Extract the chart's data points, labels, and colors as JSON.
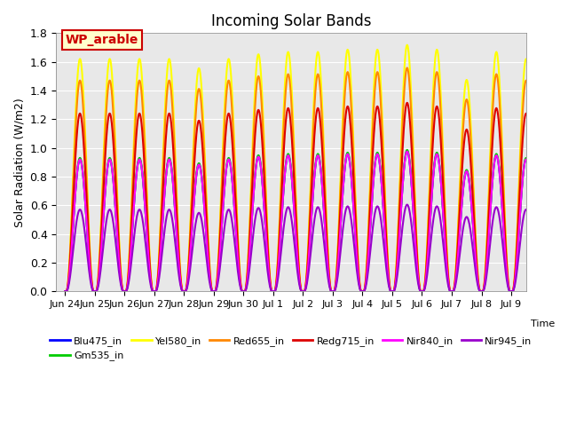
{
  "title": "Incoming Solar Bands",
  "ylabel": "Solar Radiation (W/m2)",
  "ylim": [
    0,
    1.8
  ],
  "yticks": [
    0.0,
    0.2,
    0.4,
    0.6,
    0.8,
    1.0,
    1.2,
    1.4,
    1.6,
    1.8
  ],
  "plot_bg_color": "#e8e8e8",
  "annotation_text": "WP_arable",
  "annotation_bg": "#ffffcc",
  "annotation_fg": "#cc0000",
  "series": [
    {
      "name": "Blu475_in",
      "color": "#0000ff",
      "lw": 1.5,
      "scale": 0.92
    },
    {
      "name": "Gm535_in",
      "color": "#00cc00",
      "lw": 1.5,
      "scale": 0.93
    },
    {
      "name": "Yel580_in",
      "color": "#ffff00",
      "lw": 1.5,
      "scale": 1.62
    },
    {
      "name": "Red655_in",
      "color": "#ff8800",
      "lw": 1.5,
      "scale": 1.47
    },
    {
      "name": "Redg715_in",
      "color": "#dd0000",
      "lw": 1.5,
      "scale": 1.24
    },
    {
      "name": "Nir840_in",
      "color": "#ff00ff",
      "lw": 1.5,
      "scale": 0.92
    },
    {
      "name": "Nir945_in",
      "color": "#9900cc",
      "lw": 1.5,
      "scale": 0.57
    }
  ],
  "xtick_labels": [
    "Jun 24",
    "Jun 25",
    "Jun 26",
    "Jun 27",
    "Jun 28",
    "Jun 29",
    "Jun 30",
    "Jul 1",
    "Jul 2",
    "Jul 3",
    "Jul 4",
    "Jul 5",
    "Jul 6",
    "Jul 7",
    "Jul 8",
    "Jul 9"
  ],
  "days": 16,
  "points_per_day": 200,
  "peak_scales": [
    1.0,
    1.0,
    1.0,
    1.0,
    0.96,
    1.0,
    1.02,
    1.03,
    1.03,
    1.04,
    1.04,
    1.06,
    1.04,
    0.91,
    1.03,
    1.0
  ]
}
